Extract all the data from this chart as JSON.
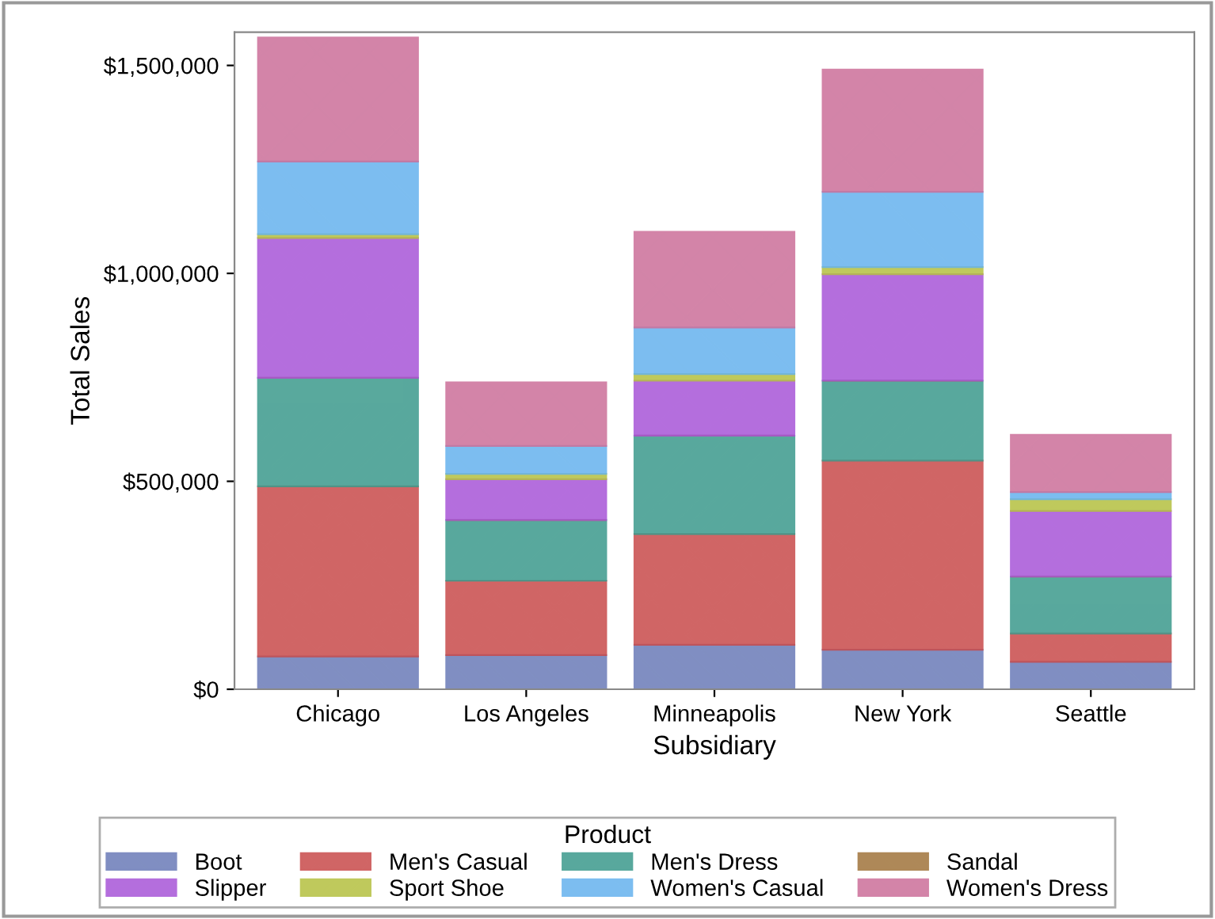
{
  "chart_data": {
    "type": "bar",
    "stacked": true,
    "xlabel": "Subsidiary",
    "ylabel": "Total Sales",
    "legend_title": "Product",
    "legend": "bottom",
    "grid": false,
    "categories": [
      "Chicago",
      "Los Angeles",
      "Minneapolis",
      "New York",
      "Seattle"
    ],
    "ylim": [
      0,
      1580000
    ],
    "yticks": [
      {
        "value": 0,
        "label": "$0"
      },
      {
        "value": 500000,
        "label": "$500,000"
      },
      {
        "value": 1000000,
        "label": "$1,000,000"
      },
      {
        "value": 1500000,
        "label": "$1,500,000"
      }
    ],
    "series": [
      {
        "name": "Boot",
        "color": "#6a7bb8",
        "values": [
          79000,
          82000,
          107000,
          95000,
          66000
        ]
      },
      {
        "name": "Men's Casual",
        "color": "#c84b4b",
        "values": [
          409000,
          179000,
          266000,
          455000,
          68000
        ]
      },
      {
        "name": "Men's Dress",
        "color": "#3c9a8c",
        "values": [
          261000,
          146000,
          237000,
          192000,
          137000
        ]
      },
      {
        "name": "Sandal",
        "color": "#a0743c",
        "values": [
          null,
          null,
          null,
          null,
          null
        ]
      },
      {
        "name": "Slipper",
        "color": "#a855d8",
        "values": [
          336000,
          98000,
          132000,
          256000,
          158000
        ]
      },
      {
        "name": "Sport Shoe",
        "color": "#b5c040",
        "values": [
          9000,
          13000,
          16000,
          17000,
          28000
        ]
      },
      {
        "name": "Women's Casual",
        "color": "#66b2ee",
        "values": [
          175000,
          67000,
          112000,
          181000,
          17000
        ]
      },
      {
        "name": "Women's Dress",
        "color": "#cc6f99",
        "values": [
          298000,
          153000,
          230000,
          294000,
          138000
        ]
      }
    ]
  }
}
